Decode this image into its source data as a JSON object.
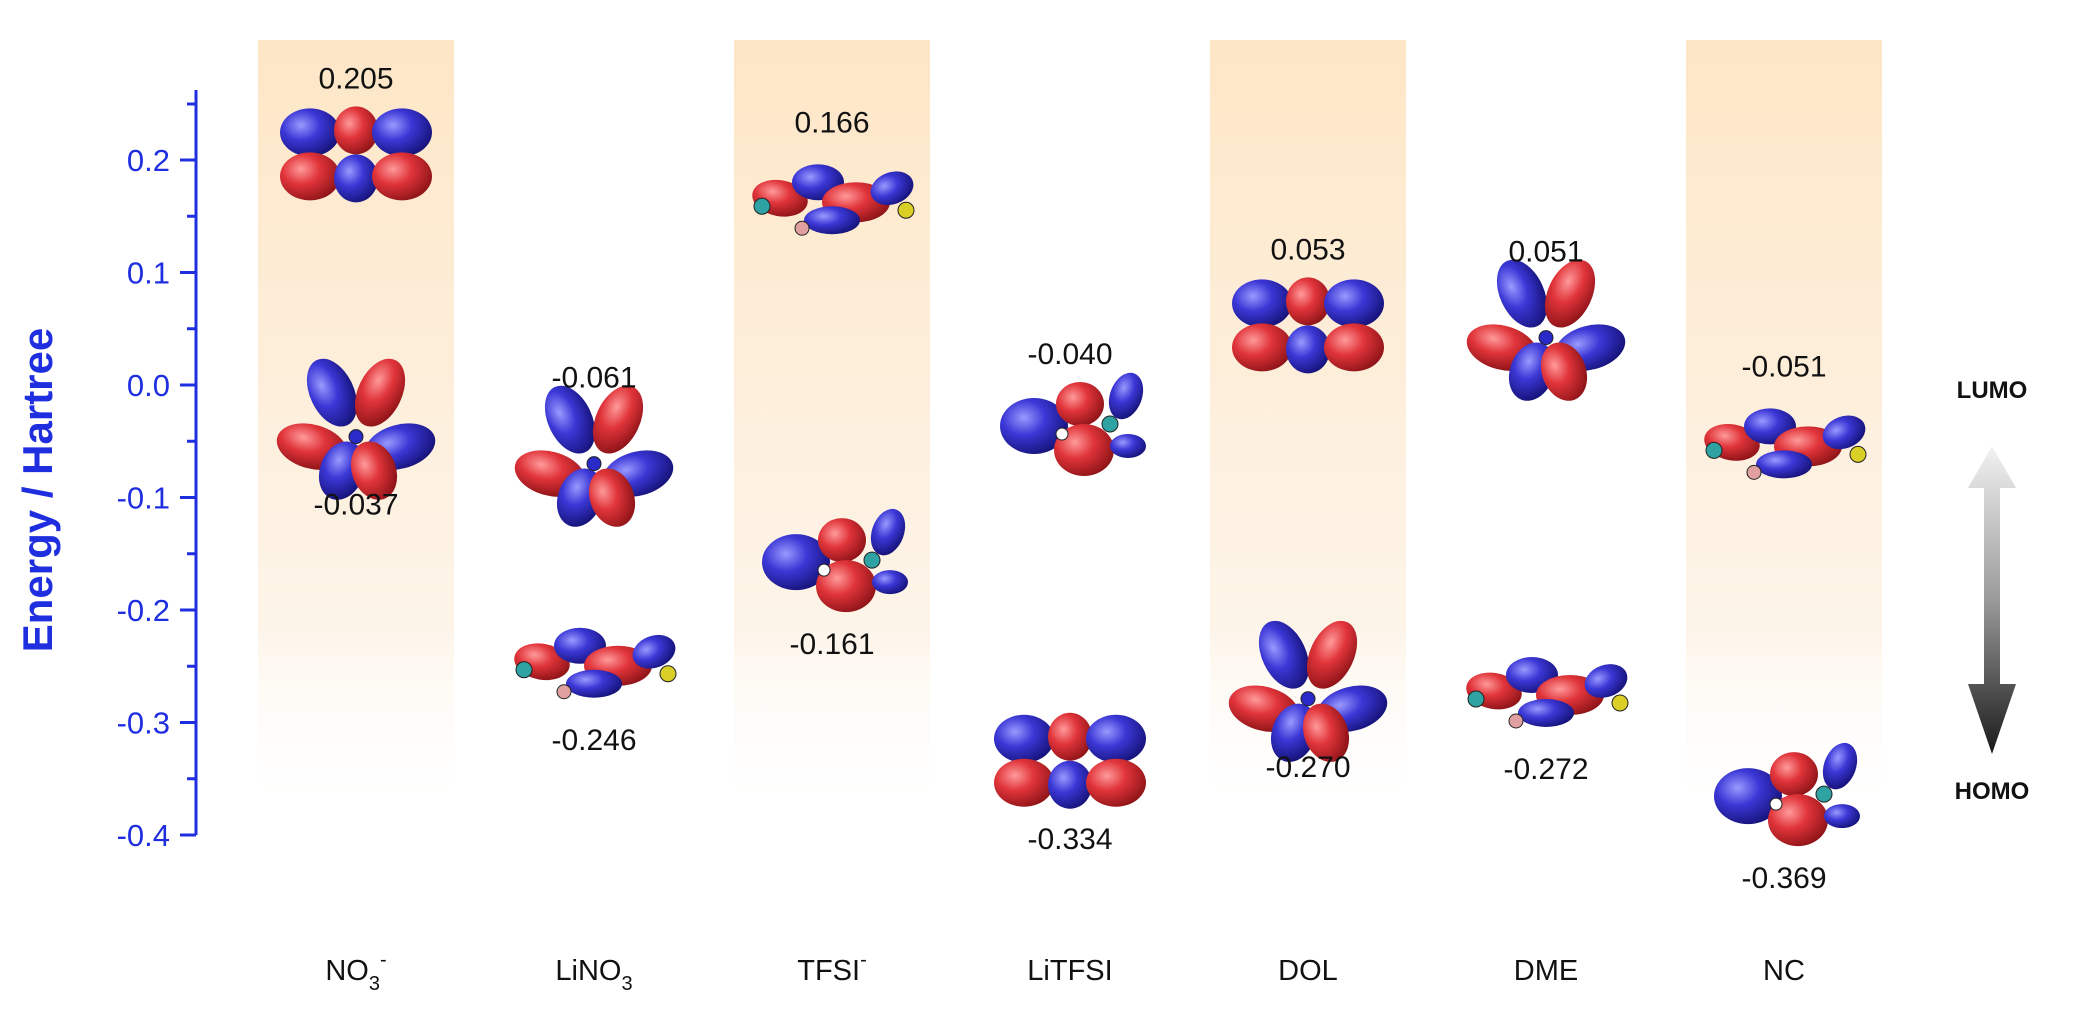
{
  "chart_data": {
    "type": "scatter",
    "ylabel": "Energy / Hartree",
    "ylim": [
      -0.4,
      0.2
    ],
    "yticks": [
      "0.2",
      "0.1",
      "0.0",
      "-0.1",
      "-0.2",
      "-0.3",
      "-0.4"
    ],
    "ytick_values": [
      0.2,
      0.1,
      0.0,
      -0.1,
      -0.2,
      -0.3,
      -0.4
    ],
    "categories": [
      {
        "name": "NO",
        "sub": "3",
        "sup": "-"
      },
      {
        "name": "LiNO",
        "sub": "3",
        "sup": ""
      },
      {
        "name": "TFSI",
        "sub": "",
        "sup": "-"
      },
      {
        "name": "LiTFSI",
        "sub": "",
        "sup": ""
      },
      {
        "name": "DOL",
        "sub": "",
        "sup": ""
      },
      {
        "name": "DME",
        "sub": "",
        "sup": ""
      },
      {
        "name": "NC",
        "sub": "",
        "sup": ""
      }
    ],
    "shaded_columns": [
      0,
      2,
      4,
      6
    ],
    "lumo_values": [
      0.205,
      -0.061,
      0.166,
      -0.04,
      0.053,
      0.051,
      -0.051
    ],
    "lumo_labels": [
      "0.205",
      "-0.061",
      "0.166",
      "-0.040",
      "0.053",
      "0.051",
      "-0.051"
    ],
    "homo_values": [
      -0.037,
      -0.246,
      -0.161,
      -0.334,
      -0.27,
      -0.272,
      -0.369
    ],
    "homo_labels": [
      "-0.037",
      "-0.246",
      "-0.161",
      "-0.334",
      "-0.270",
      "-0.272",
      "-0.369"
    ],
    "gap_arrow": {
      "top_label": "LUMO",
      "bottom_label": "HOMO"
    },
    "colors": {
      "axis": "#1f2fe0",
      "lobe_positive": "#e0343a",
      "lobe_negative": "#3b37d6",
      "column_shade": "#fdebd0"
    }
  }
}
